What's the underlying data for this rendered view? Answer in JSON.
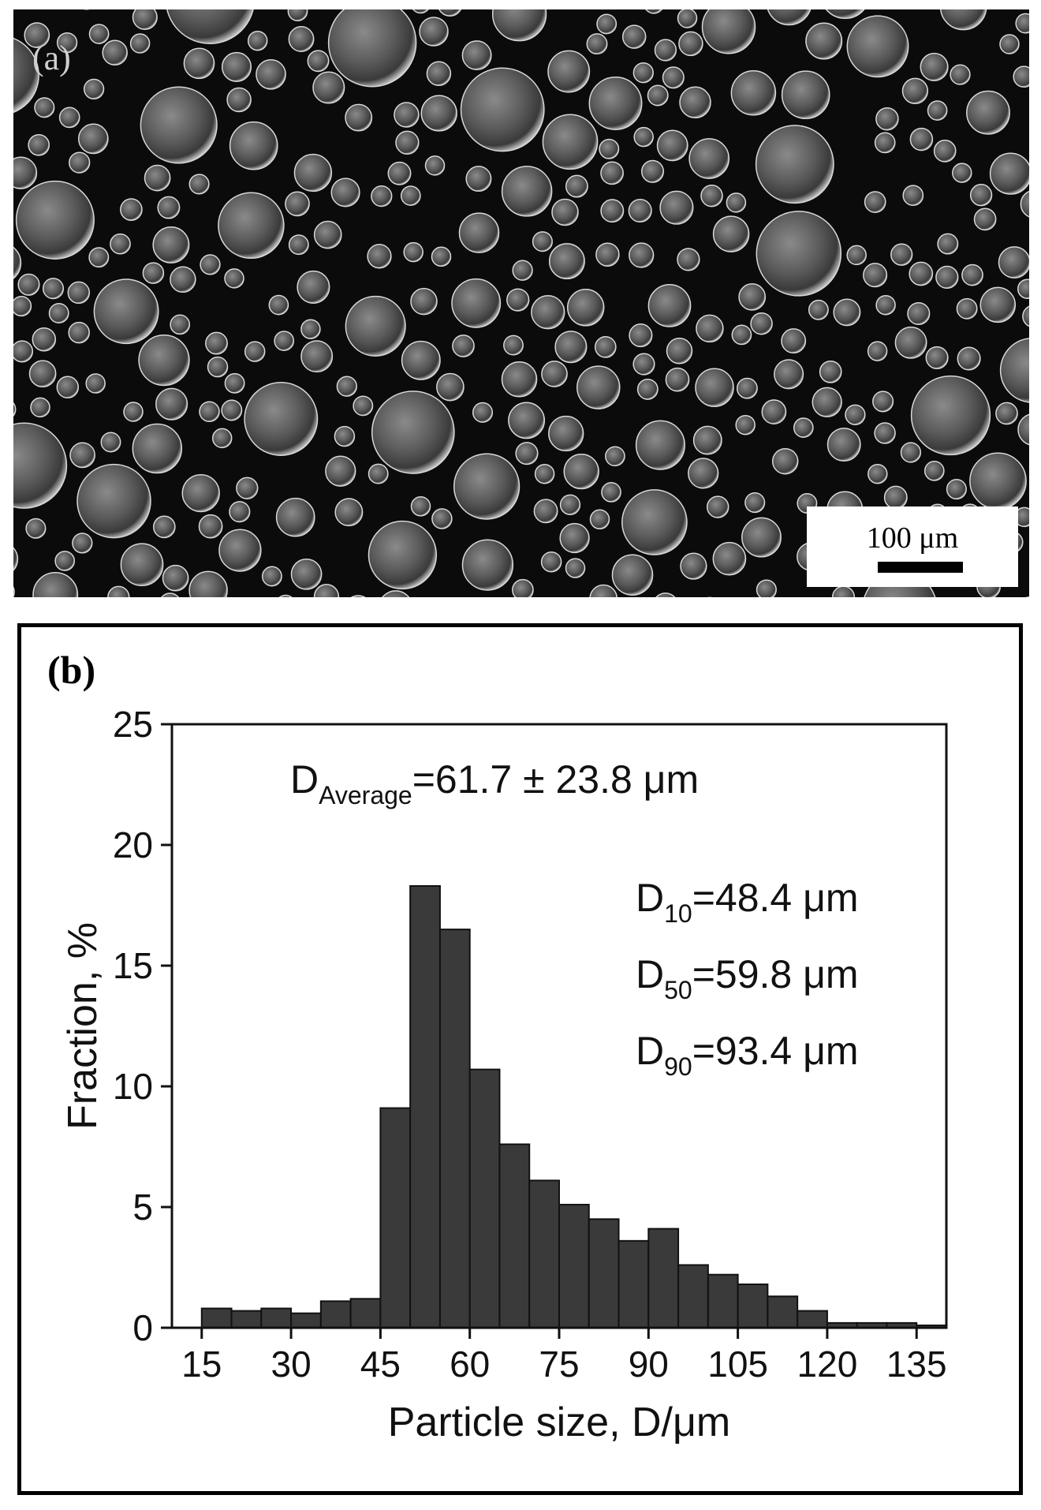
{
  "panel_a": {
    "label": "(a)",
    "scale_bar_label": "100 μm"
  },
  "panel_b": {
    "label": "(b)"
  },
  "chart_data": {
    "type": "bar",
    "xlabel": "Particle size, D/μm",
    "ylabel": "Fraction, %",
    "xlim": [
      10,
      140
    ],
    "ylim": [
      0,
      25
    ],
    "xticks": [
      15,
      30,
      45,
      60,
      75,
      90,
      105,
      120,
      135
    ],
    "yticks": [
      0,
      5,
      10,
      15,
      20,
      25
    ],
    "bin_width": 5,
    "bin_starts": [
      15,
      20,
      25,
      30,
      35,
      40,
      45,
      50,
      55,
      60,
      65,
      70,
      75,
      80,
      85,
      90,
      95,
      100,
      105,
      110,
      115,
      120,
      125,
      130,
      135
    ],
    "values": [
      0.8,
      0.7,
      0.8,
      0.6,
      1.1,
      1.2,
      9.1,
      18.3,
      16.5,
      10.7,
      7.6,
      6.1,
      5.1,
      4.5,
      3.6,
      4.1,
      2.6,
      2.2,
      1.8,
      1.3,
      0.7,
      0.2,
      0.2,
      0.2,
      0.1
    ],
    "bar_color": "#3a3a3a",
    "annotations": {
      "average": {
        "main": "D",
        "sub": "Average",
        "rest": "=61.7  ± 23.8 μm"
      },
      "d10": {
        "main": "D",
        "sub": "10",
        "rest": "=48.4 μm"
      },
      "d50": {
        "main": "D",
        "sub": "50",
        "rest": "=59.8 μm"
      },
      "d90": {
        "main": "D",
        "sub": "90",
        "rest": "=93.4 μm"
      }
    }
  }
}
